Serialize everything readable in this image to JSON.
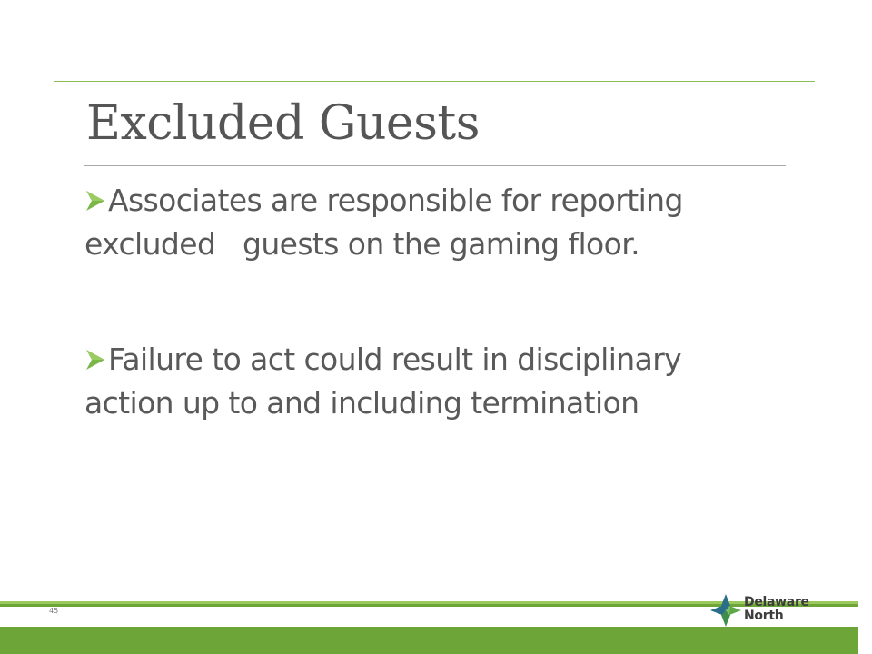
{
  "slide": {
    "title": "Excluded Guests",
    "bullets": [
      {
        "icon": "arrow-bullet-icon",
        "line1": "Associates are responsible for reporting",
        "line2": "excluded   guests on the gaming floor."
      },
      {
        "icon": "arrow-bullet-icon",
        "line1": "Failure to act could result in disciplinary",
        "line2": "action up to and including termination"
      }
    ]
  },
  "footer": {
    "page_number": "45",
    "logo_line1": "Delaware",
    "logo_line2": "North",
    "logo_icon": "delaware-north-star-icon"
  },
  "colors": {
    "accent_green": "#6ea539",
    "light_green": "#9bc95e",
    "text_gray": "#595959",
    "logo_blue": "#2b6e8a"
  }
}
